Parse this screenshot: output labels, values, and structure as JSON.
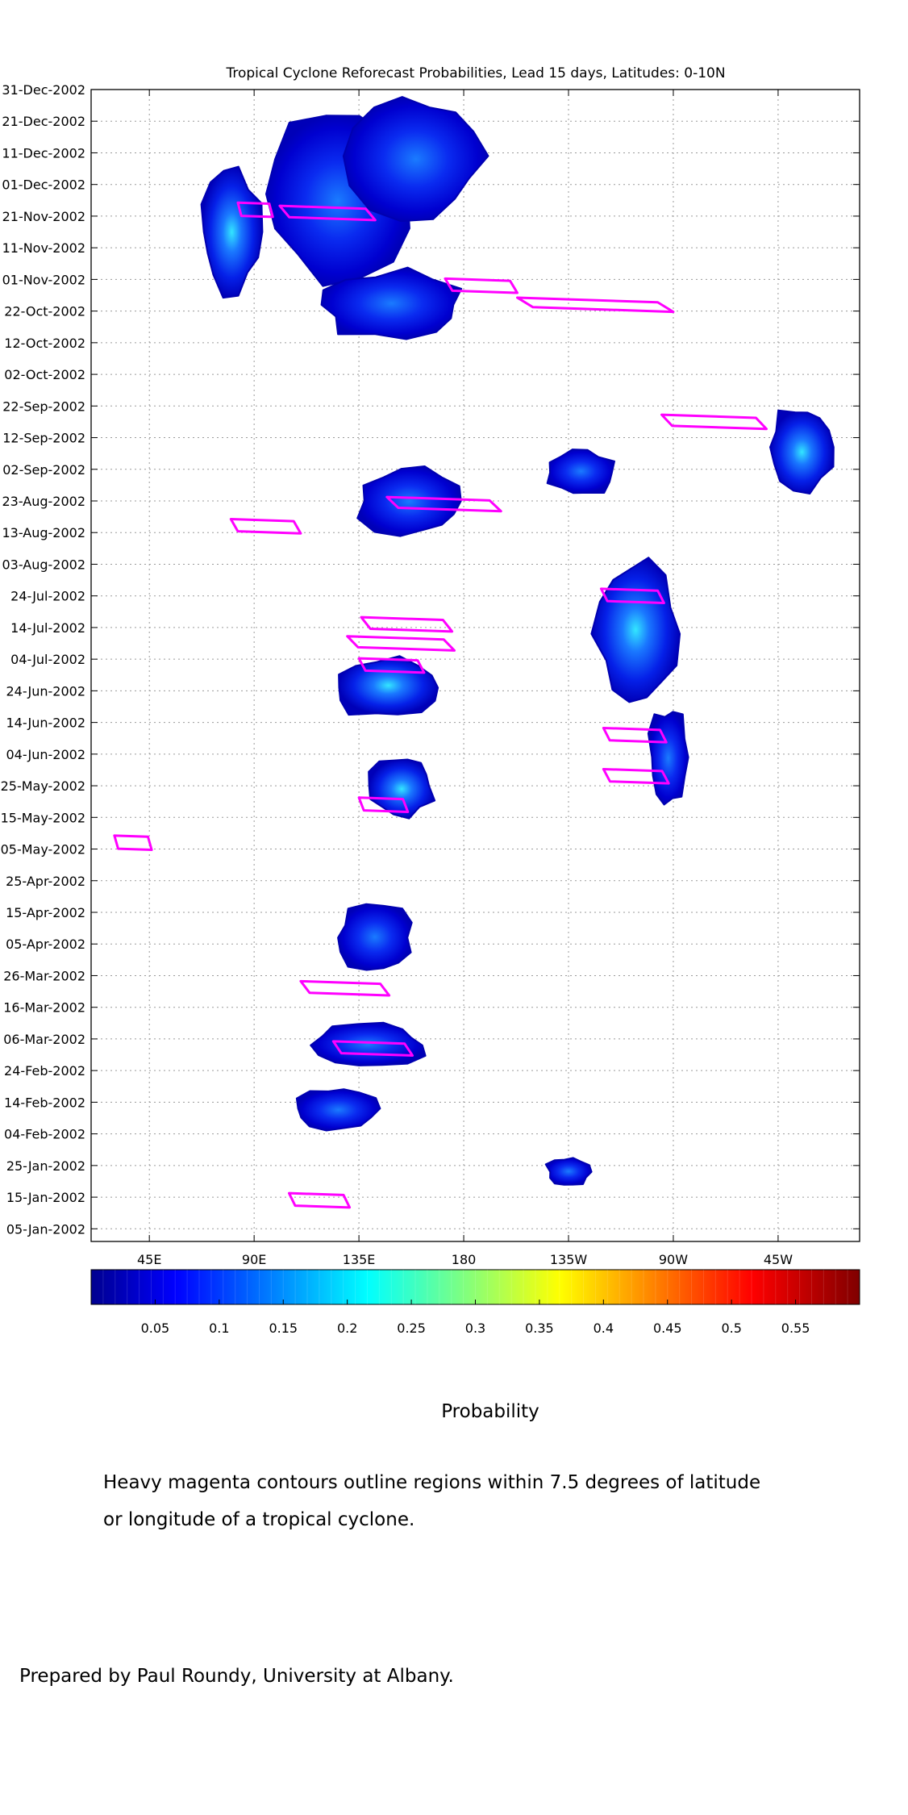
{
  "chart_data": {
    "type": "heatmap",
    "title": "Tropical Cyclone Reforecast Probabilities, Lead 15 days, Latitudes: 0-10N",
    "x_tick_labels": [
      "45E",
      "90E",
      "135E",
      "180",
      "135W",
      "90W",
      "45W"
    ],
    "x_tick_values_deg_east": [
      45,
      90,
      135,
      180,
      225,
      270,
      315
    ],
    "xlim_deg_east": [
      20,
      350
    ],
    "y_tick_labels": [
      "31-Dec-2002",
      "21-Dec-2002",
      "11-Dec-2002",
      "01-Dec-2002",
      "21-Nov-2002",
      "11-Nov-2002",
      "01-Nov-2002",
      "22-Oct-2002",
      "12-Oct-2002",
      "02-Oct-2002",
      "22-Sep-2002",
      "12-Sep-2002",
      "02-Sep-2002",
      "23-Aug-2002",
      "13-Aug-2002",
      "03-Aug-2002",
      "24-Jul-2002",
      "14-Jul-2002",
      "04-Jul-2002",
      "24-Jun-2002",
      "14-Jun-2002",
      "04-Jun-2002",
      "25-May-2002",
      "15-May-2002",
      "05-May-2002",
      "25-Apr-2002",
      "15-Apr-2002",
      "05-Apr-2002",
      "26-Mar-2002",
      "16-Mar-2002",
      "06-Mar-2002",
      "24-Feb-2002",
      "14-Feb-2002",
      "04-Feb-2002",
      "25-Jan-2002",
      "15-Jan-2002",
      "05-Jan-2002"
    ],
    "ylim": [
      "01-Jan-2002",
      "31-Dec-2002"
    ],
    "grid": true,
    "colorbar": {
      "label": "Probability",
      "tick_labels": [
        "0.05",
        "0.1",
        "0.15",
        "0.2",
        "0.25",
        "0.3",
        "0.35",
        "0.4",
        "0.45",
        "0.5",
        "0.55"
      ],
      "range": [
        0,
        0.6
      ],
      "colormap": "jet"
    },
    "probability_regions": [
      {
        "lon": 255,
        "date": "2002-07-12",
        "w": 38,
        "h": 48,
        "p": 0.11
      },
      {
        "lon": 268,
        "date": "2002-06-03",
        "w": 18,
        "h": 32,
        "p": 0.08
      },
      {
        "lon": 147,
        "date": "2002-06-25",
        "w": 48,
        "h": 20,
        "p": 0.12
      },
      {
        "lon": 153,
        "date": "2002-05-25",
        "w": 30,
        "h": 20,
        "p": 0.1
      },
      {
        "lon": 128,
        "date": "2002-11-28",
        "w": 70,
        "h": 55,
        "p": 0.09
      },
      {
        "lon": 160,
        "date": "2002-12-10",
        "w": 60,
        "h": 40,
        "p": 0.09
      },
      {
        "lon": 148,
        "date": "2002-10-24",
        "w": 65,
        "h": 22,
        "p": 0.09
      },
      {
        "lon": 80,
        "date": "2002-11-16",
        "w": 28,
        "h": 40,
        "p": 0.1
      },
      {
        "lon": 158,
        "date": "2002-08-23",
        "w": 50,
        "h": 24,
        "p": 0.08
      },
      {
        "lon": 230,
        "date": "2002-09-01",
        "w": 32,
        "h": 16,
        "p": 0.07
      },
      {
        "lon": 325,
        "date": "2002-09-09",
        "w": 30,
        "h": 28,
        "p": 0.1
      },
      {
        "lon": 142,
        "date": "2002-04-07",
        "w": 35,
        "h": 22,
        "p": 0.07
      },
      {
        "lon": 140,
        "date": "2002-03-04",
        "w": 48,
        "h": 14,
        "p": 0.06
      },
      {
        "lon": 125,
        "date": "2002-02-12",
        "w": 35,
        "h": 14,
        "p": 0.05
      },
      {
        "lon": 225,
        "date": "2002-01-23",
        "w": 20,
        "h": 10,
        "p": 0.05
      }
    ],
    "tc_contours_lon_range": [
      {
        "lon": [
          101,
          142
        ],
        "date": "2002-11-22"
      },
      {
        "lon": [
          83,
          98
        ],
        "date": "2002-11-23"
      },
      {
        "lon": [
          172,
          203
        ],
        "date": "2002-10-30"
      },
      {
        "lon": [
          203,
          270
        ],
        "date": "2002-10-24"
      },
      {
        "lon": [
          147,
          196
        ],
        "date": "2002-08-22"
      },
      {
        "lon": [
          265,
          310
        ],
        "date": "2002-09-17"
      },
      {
        "lon": [
          80,
          110
        ],
        "date": "2002-08-15"
      },
      {
        "lon": [
          136,
          175
        ],
        "date": "2002-07-15"
      },
      {
        "lon": [
          135,
          163
        ],
        "date": "2002-07-02"
      },
      {
        "lon": [
          130,
          176
        ],
        "date": "2002-07-09"
      },
      {
        "lon": [
          239,
          266
        ],
        "date": "2002-07-24"
      },
      {
        "lon": [
          240,
          267
        ],
        "date": "2002-06-10"
      },
      {
        "lon": [
          240,
          268
        ],
        "date": "2002-05-28"
      },
      {
        "lon": [
          135,
          156
        ],
        "date": "2002-05-19"
      },
      {
        "lon": [
          30,
          46
        ],
        "date": "2002-05-07"
      },
      {
        "lon": [
          110,
          148
        ],
        "date": "2002-03-22"
      },
      {
        "lon": [
          124,
          158
        ],
        "date": "2002-03-03"
      },
      {
        "lon": [
          105,
          131
        ],
        "date": "2002-01-14"
      }
    ]
  },
  "footer": {
    "note_line1": "Heavy magenta contours outline regions within 7.5 degrees of latitude",
    "note_line2": "or longitude of a tropical cyclone.",
    "credit": "Prepared by Paul Roundy, University at Albany."
  },
  "colors": {
    "contour": "#ff00ff",
    "grid": "#9a9a9a"
  }
}
